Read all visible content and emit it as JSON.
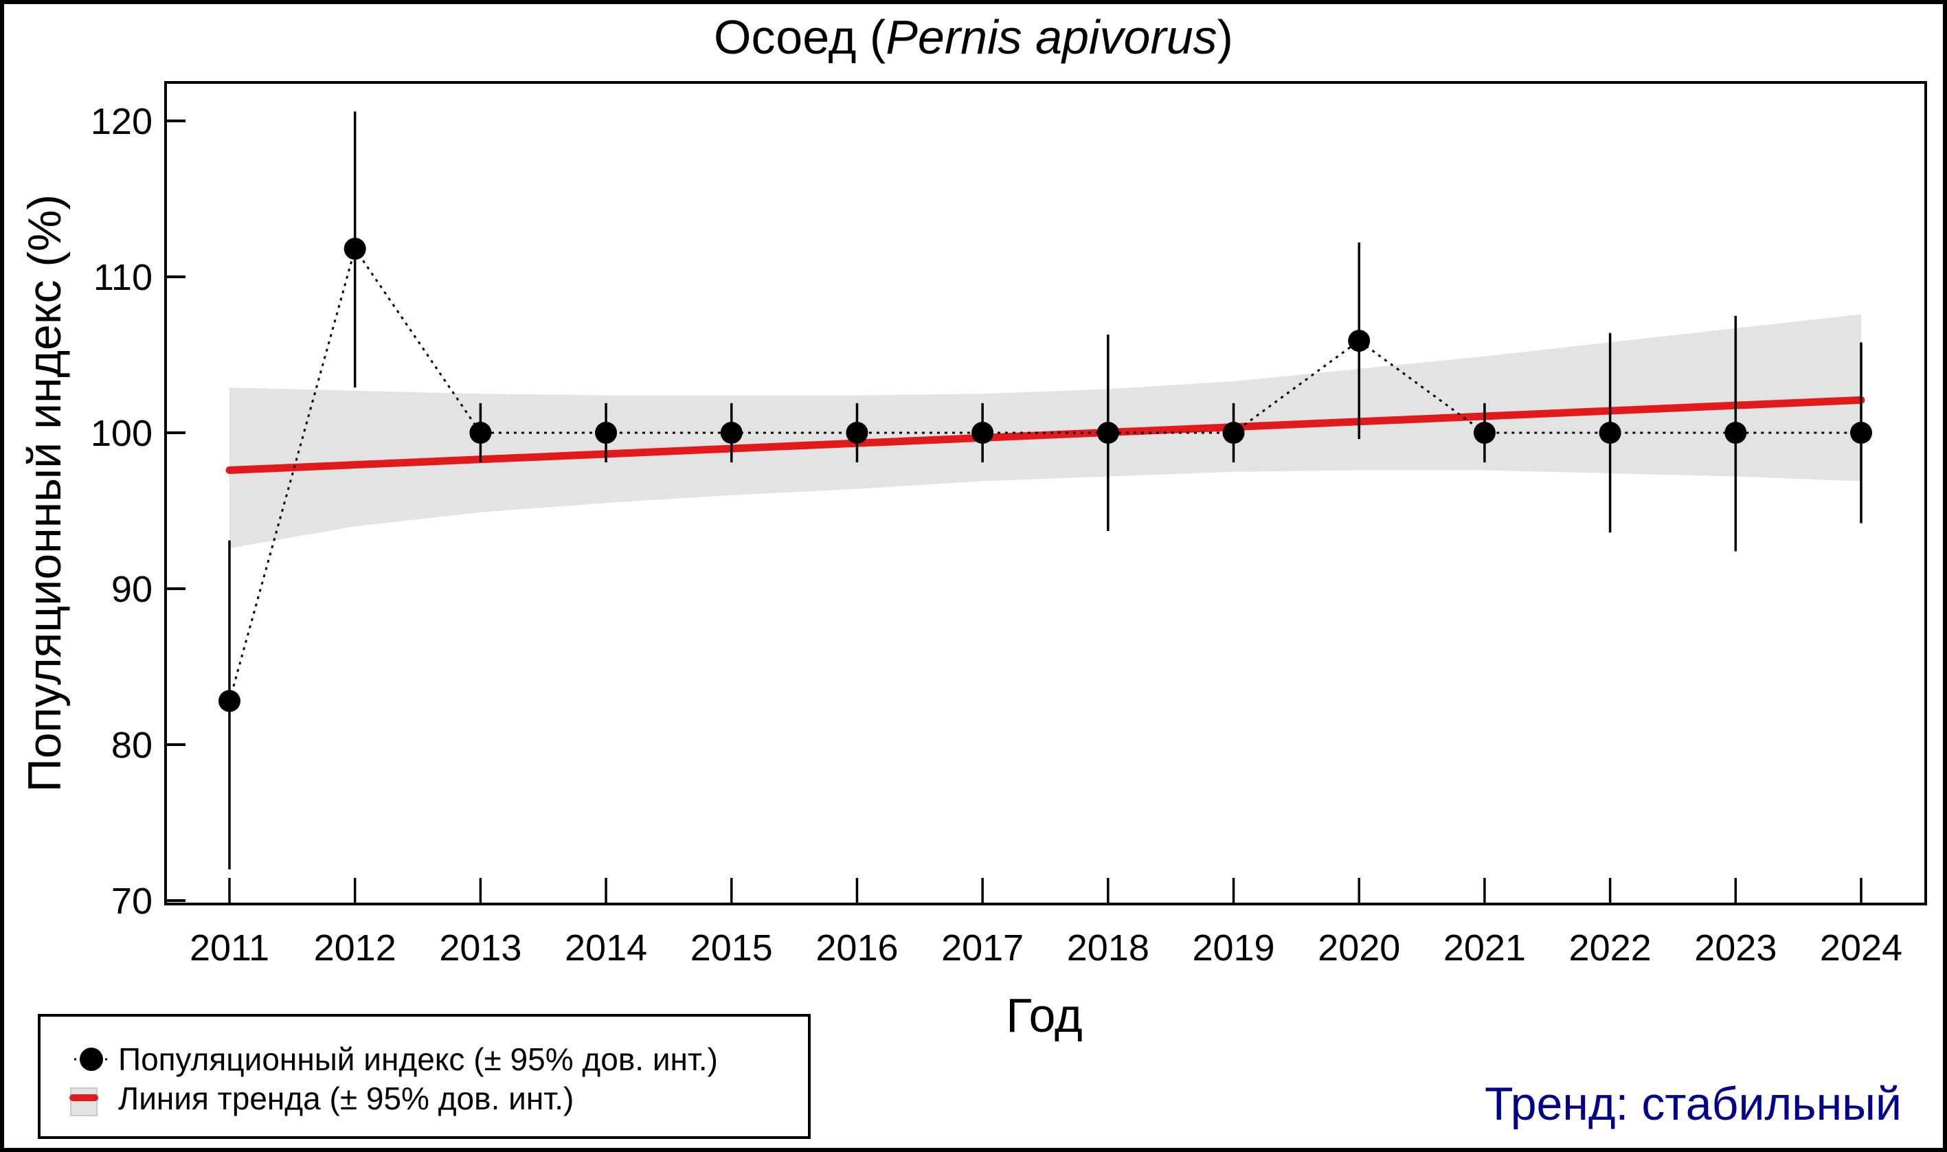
{
  "chart_data": {
    "type": "line",
    "title": "Осоед (",
    "title_species": "Pernis apivorus",
    "title_close": ")",
    "xlabel": "Год",
    "ylabel": "Популяционный индекс (%)",
    "ylim": [
      70,
      120
    ],
    "yticks": [
      70,
      80,
      90,
      100,
      110,
      120
    ],
    "ytick_labels": [
      "70",
      "80",
      "90",
      "100",
      "110",
      "120"
    ],
    "xlim": [
      2011,
      2024
    ],
    "categories": [
      "2011",
      "2012",
      "2013",
      "2014",
      "2015",
      "2016",
      "2017",
      "2018",
      "2019",
      "2020",
      "2021",
      "2022",
      "2023",
      "2024"
    ],
    "grid": false,
    "series": [
      {
        "name": "Популяционный индекс (± 95% дов. инт.)",
        "style": "points-dotted",
        "color": "#000000",
        "x": [
          2011,
          2012,
          2013,
          2014,
          2015,
          2016,
          2017,
          2018,
          2019,
          2020,
          2021,
          2022,
          2023,
          2024
        ],
        "values": [
          82.8,
          111.8,
          100,
          100,
          100,
          100,
          100,
          100,
          100,
          105.9,
          100,
          100,
          100,
          100
        ],
        "ci_lower": [
          72.0,
          102.9,
          98.1,
          98.1,
          98.1,
          98.1,
          98.1,
          93.7,
          98.1,
          99.6,
          98.1,
          93.6,
          92.4,
          94.2
        ],
        "ci_upper": [
          93.1,
          120.6,
          101.9,
          101.9,
          101.9,
          101.9,
          101.9,
          106.3,
          101.9,
          112.2,
          101.9,
          106.4,
          107.5,
          105.8
        ]
      },
      {
        "name": "Линия тренда (± 95% дов. инт.)",
        "style": "trend",
        "color": "#e31a1c",
        "band_color": "#e3e3e3",
        "x": [
          2011,
          2012,
          2013,
          2014,
          2015,
          2016,
          2017,
          2018,
          2019,
          2020,
          2021,
          2022,
          2023,
          2024
        ],
        "values": [
          97.6,
          97.95,
          98.3,
          98.65,
          99.0,
          99.35,
          99.7,
          100.05,
          100.4,
          100.75,
          101.1,
          101.45,
          101.8,
          102.1
        ],
        "band_lower": [
          92.6,
          94.0,
          94.9,
          95.5,
          96.0,
          96.4,
          96.9,
          97.2,
          97.5,
          97.6,
          97.6,
          97.4,
          97.2,
          96.9
        ],
        "band_upper": [
          102.9,
          102.7,
          102.5,
          102.4,
          102.4,
          102.4,
          102.5,
          102.8,
          103.3,
          104.1,
          104.9,
          105.8,
          106.7,
          107.6
        ]
      }
    ],
    "legend": {
      "placement": "bottom-left",
      "entries": [
        "Популяционный индекс (± 95% дов. инт.)",
        "Линия тренда (± 95% дов. инт.)"
      ]
    },
    "annotation": {
      "text": "Тренд: стабильный",
      "color": "#00008b",
      "placement": "bottom-right"
    }
  }
}
